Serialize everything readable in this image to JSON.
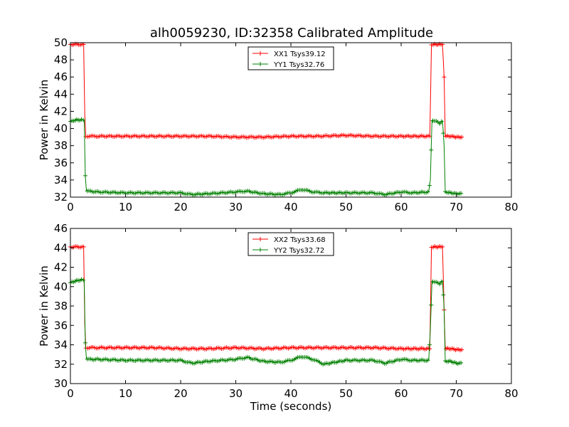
{
  "title": "alh0059230, ID:32358 Calibrated Amplitude",
  "colors": {
    "xx": "#ff0000",
    "yy": "#008000"
  },
  "chart_data": [
    {
      "type": "line",
      "ylabel": "Power in Kelvin",
      "xlabel": "",
      "xlim": [
        0,
        80
      ],
      "ylim": [
        32,
        50
      ],
      "xticks": [
        "0",
        "10",
        "20",
        "30",
        "40",
        "50",
        "60",
        "70",
        "80"
      ],
      "yticks": [
        "32",
        "34",
        "36",
        "38",
        "40",
        "42",
        "44",
        "46",
        "48",
        "50"
      ],
      "grid": false,
      "legend_position": "top-center",
      "series": [
        {
          "name": "XX1 Tsys39.12",
          "color": "#ff0000",
          "x": [
            0,
            2.4,
            2.6,
            2.8,
            3.0,
            5,
            10,
            15,
            20,
            25,
            30,
            35,
            40,
            45,
            50,
            55,
            60,
            65.2,
            65.5,
            65.8,
            66.5,
            67.5,
            67.8,
            68.0,
            69,
            70,
            71
          ],
          "y": [
            49.8,
            49.8,
            41.6,
            39.1,
            39.1,
            39.1,
            39.1,
            39.1,
            39.1,
            39.1,
            39.0,
            39.0,
            39.1,
            39.1,
            39.2,
            39.1,
            39.1,
            39.1,
            49.8,
            49.8,
            49.8,
            49.8,
            46.0,
            39.1,
            39.1,
            39.0,
            39.0
          ]
        },
        {
          "name": "YY1 Tsys32.76",
          "color": "#008000",
          "x": [
            0,
            1,
            2,
            2.5,
            2.7,
            2.9,
            3.2,
            5,
            10,
            15,
            20,
            22,
            25,
            30,
            32,
            35,
            38,
            40,
            42,
            44,
            46,
            50,
            55,
            57,
            60,
            62,
            65,
            65.3,
            65.6,
            66.5,
            67,
            67.5,
            67.8,
            68.0,
            69,
            70,
            71
          ],
          "y": [
            40.8,
            41.0,
            41.0,
            40.9,
            34.5,
            32.8,
            32.7,
            32.6,
            32.5,
            32.5,
            32.5,
            32.3,
            32.4,
            32.6,
            32.7,
            32.4,
            32.3,
            32.5,
            32.9,
            32.6,
            32.5,
            32.5,
            32.5,
            32.3,
            32.6,
            32.5,
            32.6,
            34.0,
            41.0,
            40.8,
            40.5,
            40.9,
            38.0,
            32.6,
            32.5,
            32.4,
            32.4
          ]
        }
      ]
    },
    {
      "type": "line",
      "ylabel": "Power in Kelvin",
      "xlabel": "Time (seconds)",
      "xlim": [
        0,
        80
      ],
      "ylim": [
        30,
        46
      ],
      "xticks": [
        "0",
        "10",
        "20",
        "30",
        "40",
        "50",
        "60",
        "70",
        "80"
      ],
      "yticks": [
        "30",
        "32",
        "34",
        "36",
        "38",
        "40",
        "42",
        "44",
        "46"
      ],
      "grid": false,
      "legend_position": "top-center",
      "series": [
        {
          "name": "XX2 Tsys33.68",
          "color": "#ff0000",
          "x": [
            0,
            2.4,
            2.6,
            2.8,
            3.0,
            5,
            10,
            15,
            20,
            25,
            30,
            35,
            40,
            45,
            50,
            55,
            60,
            65.2,
            65.5,
            65.8,
            66.5,
            67.5,
            67.8,
            68.0,
            69,
            70,
            71
          ],
          "y": [
            44.1,
            44.1,
            36.1,
            33.7,
            33.7,
            33.7,
            33.7,
            33.7,
            33.6,
            33.6,
            33.7,
            33.6,
            33.7,
            33.7,
            33.7,
            33.7,
            33.6,
            33.6,
            44.1,
            44.1,
            44.1,
            44.1,
            37.6,
            33.6,
            33.6,
            33.5,
            33.5
          ]
        },
        {
          "name": "YY2 Tsys32.72",
          "color": "#008000",
          "x": [
            0,
            1,
            2,
            2.5,
            2.7,
            2.9,
            3.2,
            5,
            10,
            15,
            20,
            22,
            25,
            30,
            32,
            35,
            38,
            40,
            42,
            44,
            46,
            50,
            55,
            57,
            60,
            62,
            65,
            65.3,
            65.6,
            66.5,
            67,
            67.5,
            67.8,
            68.0,
            69,
            70,
            71
          ],
          "y": [
            40.4,
            40.6,
            40.7,
            40.6,
            34.2,
            32.6,
            32.5,
            32.5,
            32.4,
            32.4,
            32.4,
            32.1,
            32.3,
            32.5,
            32.7,
            32.3,
            32.2,
            32.4,
            32.8,
            32.5,
            32.0,
            32.4,
            32.4,
            32.1,
            32.5,
            32.4,
            32.4,
            35.6,
            40.6,
            40.4,
            40.2,
            40.6,
            37.7,
            32.3,
            32.3,
            32.1,
            32.1
          ]
        }
      ]
    }
  ]
}
